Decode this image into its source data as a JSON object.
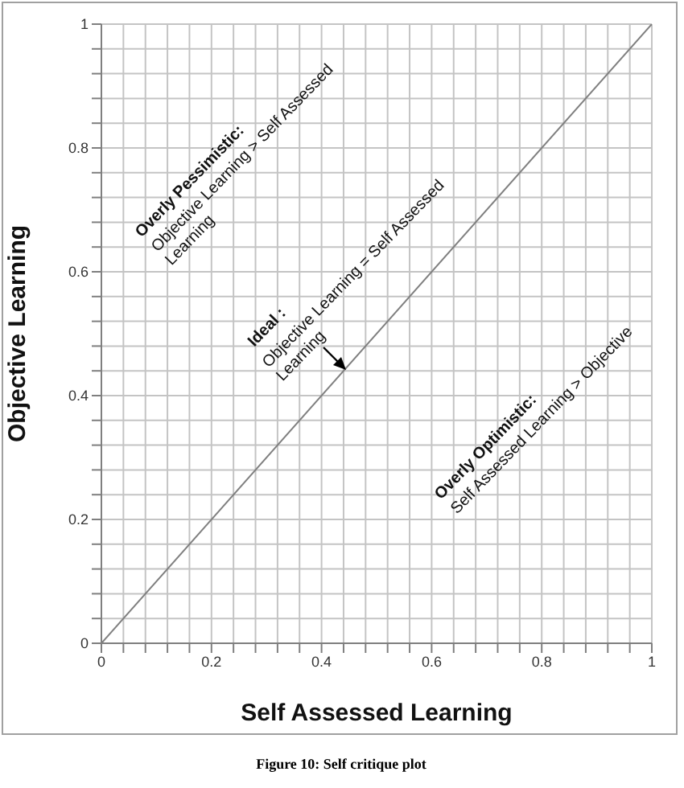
{
  "chart_data": {
    "type": "line",
    "xlabel": "Self Assessed Learning",
    "ylabel": "Objective Learning",
    "x": [
      0,
      1
    ],
    "series": [
      {
        "color": "#7f7f7f",
        "values": [
          0,
          1
        ]
      }
    ],
    "xlim": [
      0,
      1
    ],
    "ylim": [
      0,
      1
    ],
    "xticks": [
      0,
      {
        "value": 0.04,
        "label": null
      },
      {
        "value": 0.08,
        "label": null
      },
      {
        "value": 0.12,
        "label": null
      },
      {
        "value": 0.16,
        "label": null
      },
      0.2,
      {
        "value": 0.24,
        "label": null
      },
      {
        "value": 0.28,
        "label": null
      },
      {
        "value": 0.32,
        "label": null
      },
      {
        "value": 0.36,
        "label": null
      },
      0.4,
      {
        "value": 0.44,
        "label": null
      },
      {
        "value": 0.48,
        "label": null
      },
      {
        "value": 0.52,
        "label": null
      },
      {
        "value": 0.56,
        "label": null
      },
      0.6,
      {
        "value": 0.64,
        "label": null
      },
      {
        "value": 0.68,
        "label": null
      },
      {
        "value": 0.72,
        "label": null
      },
      {
        "value": 0.76,
        "label": null
      },
      0.8,
      {
        "value": 0.84,
        "label": null
      },
      {
        "value": 0.88,
        "label": null
      },
      {
        "value": 0.92,
        "label": null
      },
      {
        "value": 0.96,
        "label": null
      },
      1
    ],
    "yticks": [
      0,
      {
        "value": 0.04,
        "label": null
      },
      {
        "value": 0.08,
        "label": null
      },
      {
        "value": 0.12,
        "label": null
      },
      {
        "value": 0.16,
        "label": null
      },
      0.2,
      {
        "value": 0.24,
        "label": null
      },
      {
        "value": 0.28,
        "label": null
      },
      {
        "value": 0.32,
        "label": null
      },
      {
        "value": 0.36,
        "label": null
      },
      0.4,
      {
        "value": 0.44,
        "label": null
      },
      {
        "value": 0.48,
        "label": null
      },
      {
        "value": 0.52,
        "label": null
      },
      {
        "value": 0.56,
        "label": null
      },
      0.6,
      {
        "value": 0.64,
        "label": null
      },
      {
        "value": 0.68,
        "label": null
      },
      {
        "value": 0.72,
        "label": null
      },
      {
        "value": 0.76,
        "label": null
      },
      0.8,
      {
        "value": 0.84,
        "label": null
      },
      {
        "value": 0.88,
        "label": null
      },
      {
        "value": 0.92,
        "label": null
      },
      {
        "value": 0.96,
        "label": null
      },
      1
    ],
    "grid": true,
    "legend": false,
    "marker": "none",
    "line_style": "solid",
    "annotations": [
      "Overly Pessimistic:",
      "Objective Learning > Self Assessed Learning",
      "Ideal :",
      "Objective Learning = Self Assessed Learning",
      "Overly Optimistic:",
      "Self Assessed Learning > Objective",
      "Figure 10: Self critique plot"
    ]
  }
}
